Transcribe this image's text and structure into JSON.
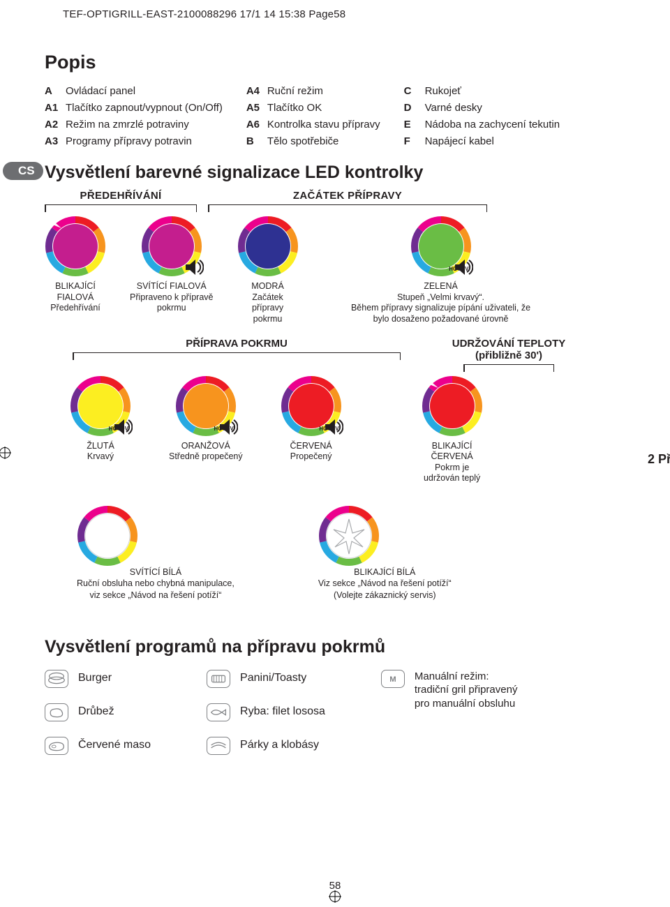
{
  "print_header": "TEF-OPTIGRILL-EAST-2100088296  17/1    14  15:38  Page58",
  "lang_badge": "CS",
  "page_number": "58",
  "right_cut": "2 Př",
  "headings": {
    "popis": "Popis",
    "led": "Vysvětlení barevné signalizace LED kontrolky",
    "programs": "Vysvětlení programů na přípravu pokrmů"
  },
  "description": {
    "col1": [
      {
        "k": "A",
        "v": "Ovládací panel"
      },
      {
        "k": "A1",
        "v": "Tlačítko zapnout/vypnout (On/Off)"
      },
      {
        "k": "A2",
        "v": "Režim na zmrzlé potraviny"
      },
      {
        "k": "A3",
        "v": "Programy přípravy potravin"
      }
    ],
    "col2": [
      {
        "k": "A4",
        "v": "Ruční režim"
      },
      {
        "k": "A5",
        "v": "Tlačítko OK"
      },
      {
        "k": "A6",
        "v": "Kontrolka stavu přípravy"
      },
      {
        "k": "B",
        "v": "Tělo spotřebiče"
      }
    ],
    "col3": [
      {
        "k": "C",
        "v": "Rukojeť"
      },
      {
        "k": "D",
        "v": "Varné desky"
      },
      {
        "k": "E",
        "v": "Nádoba na zachycení tekutin"
      },
      {
        "k": "F",
        "v": "Napájecí kabel"
      }
    ]
  },
  "phase_labels": {
    "preheat": "PŘEDEHŘÍVÁNÍ",
    "start": "ZAČÁTEK PŘÍPRAVY",
    "cooking": "PŘÍPRAVA POKRMU",
    "keepwarm_l1": "UDRŽOVÁNÍ TEPLOTY",
    "keepwarm_l2": "(přibližně 30')"
  },
  "leds_row1": [
    {
      "color": "#c41e8e",
      "flash": true,
      "sound": false,
      "l1": "BLIKAJÍCÍ",
      "l2": "FIALOVÁ",
      "l3": "Předehřívání"
    },
    {
      "color": "#c41e8e",
      "flash": false,
      "sound": true,
      "l1": "SVÍTÍCÍ FIALOVÁ",
      "l2": "Připraveno k přípravě",
      "l3": "pokrmu"
    },
    {
      "color": "#2e3192",
      "flash": false,
      "sound": false,
      "l1": "MODRÁ",
      "l2": "Začátek",
      "l3": "přípravy",
      "l4": "pokrmu"
    },
    {
      "color": "#6abd45",
      "flash": false,
      "sound": true,
      "hotov": true,
      "wide": true,
      "l1": "ZELENÁ",
      "l2": "Stupeň „Velmi krvavý“.",
      "l3": "Během přípravy signalizuje pípání uživateli, že",
      "l4": "bylo dosaženo požadované úrovně"
    }
  ],
  "leds_row2": [
    {
      "color": "#fcee21",
      "flash": false,
      "sound": true,
      "hotov": true,
      "l1": "ŽLUTÁ",
      "l2": "Krvavý"
    },
    {
      "color": "#f7941e",
      "flash": false,
      "sound": true,
      "hotov": true,
      "l1": "ORANŽOVÁ",
      "l2": "Středně propečený"
    },
    {
      "color": "#ed1c24",
      "flash": false,
      "sound": true,
      "hotov": true,
      "l1": "ČERVENÁ",
      "l2": "Propečený"
    },
    {
      "color": "#ed1c24",
      "flash": true,
      "sound": false,
      "l1": "BLIKAJÍCÍ",
      "l2": "ČERVENÁ",
      "l3": "Pokrm je",
      "l4": "udržován teplý"
    }
  ],
  "leds_white": [
    {
      "flash": false,
      "l1": "SVÍTÍCÍ BÍLÁ",
      "l2": "Ruční obsluha nebo chybná manipulace,",
      "l3": "viz sekce „Návod na řešení potíží“"
    },
    {
      "flash": true,
      "l1": "BLIKAJÍCÍ BÍLÁ",
      "l2": "Viz sekce „Návod na řešení potíží“",
      "l3": "(Volejte zákaznický servis)"
    }
  ],
  "programs": {
    "col1": [
      {
        "icon": "burger",
        "label": "Burger"
      },
      {
        "icon": "poultry",
        "label": "Drůbež"
      },
      {
        "icon": "meat",
        "label": "Červené maso"
      }
    ],
    "col2": [
      {
        "icon": "panini",
        "label": "Panini/Toasty"
      },
      {
        "icon": "fish",
        "label": "Ryba: filet lososa"
      },
      {
        "icon": "sausage",
        "label": "Párky a klobásy"
      }
    ],
    "col3": {
      "icon": "manual",
      "title": "Manuální režim:",
      "l2": "tradiční gril připravený",
      "l3": "pro manuální obsluhu"
    }
  },
  "bracket_widths": {
    "preheat": 218,
    "start": 400,
    "cooking": 470,
    "keepwarm": 130
  },
  "colors": {
    "ring_stops": [
      "#ed1c24",
      "#f7941e",
      "#fcee21",
      "#6abd45",
      "#27a9e1",
      "#6f2c91",
      "#ec008c"
    ],
    "grey": "#808285"
  },
  "hotov_label": "HOTOV"
}
